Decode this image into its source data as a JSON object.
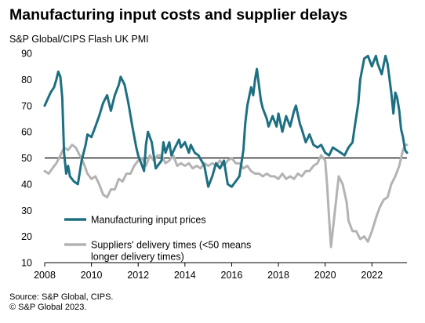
{
  "title": "Manufacturing input costs and supplier delays",
  "subtitle": "S&P Global/CIPS Flash UK PMI",
  "footer_source": "Source: S&P Global, CIPS.",
  "footer_copyright": "© S&P Global 2023.",
  "colors": {
    "input_prices": "#1d6f82",
    "delivery_times": "#b3b3b3",
    "reference": "#000000"
  },
  "chart_data": {
    "type": "line",
    "xlim": [
      2008,
      2023.5
    ],
    "ylim": [
      10,
      90
    ],
    "x_ticks": [
      2008,
      2010,
      2012,
      2014,
      2016,
      2018,
      2020,
      2022
    ],
    "y_ticks": [
      10,
      20,
      30,
      40,
      50,
      60,
      70,
      80,
      90
    ],
    "reference_line": 50,
    "legend_position": "center-bottom",
    "series": [
      {
        "name": "Manufacturing input prices",
        "color": "#1d6f82",
        "points": [
          [
            2008.0,
            70
          ],
          [
            2008.25,
            75
          ],
          [
            2008.4,
            77
          ],
          [
            2008.5,
            80
          ],
          [
            2008.58,
            83
          ],
          [
            2008.67,
            81
          ],
          [
            2008.75,
            73
          ],
          [
            2008.83,
            52
          ],
          [
            2008.92,
            44
          ],
          [
            2009.0,
            47
          ],
          [
            2009.08,
            43
          ],
          [
            2009.25,
            41
          ],
          [
            2009.42,
            40
          ],
          [
            2009.58,
            49
          ],
          [
            2009.75,
            55
          ],
          [
            2009.83,
            59
          ],
          [
            2010.0,
            58
          ],
          [
            2010.17,
            62
          ],
          [
            2010.33,
            66
          ],
          [
            2010.5,
            71
          ],
          [
            2010.67,
            74
          ],
          [
            2010.83,
            68
          ],
          [
            2011.0,
            74
          ],
          [
            2011.17,
            78
          ],
          [
            2011.25,
            81
          ],
          [
            2011.42,
            78
          ],
          [
            2011.58,
            71
          ],
          [
            2011.75,
            62
          ],
          [
            2011.92,
            54
          ],
          [
            2012.0,
            51
          ],
          [
            2012.17,
            47
          ],
          [
            2012.25,
            45
          ],
          [
            2012.33,
            55
          ],
          [
            2012.42,
            60
          ],
          [
            2012.58,
            56
          ],
          [
            2012.75,
            46
          ],
          [
            2013.0,
            49
          ],
          [
            2013.08,
            56
          ],
          [
            2013.17,
            52
          ],
          [
            2013.33,
            56
          ],
          [
            2013.42,
            51
          ],
          [
            2013.58,
            54
          ],
          [
            2013.75,
            57
          ],
          [
            2013.83,
            54
          ],
          [
            2014.0,
            56
          ],
          [
            2014.17,
            52
          ],
          [
            2014.25,
            55
          ],
          [
            2014.42,
            52
          ],
          [
            2014.58,
            51
          ],
          [
            2014.83,
            47
          ],
          [
            2015.0,
            39
          ],
          [
            2015.17,
            43
          ],
          [
            2015.33,
            48
          ],
          [
            2015.5,
            46
          ],
          [
            2015.67,
            49
          ],
          [
            2015.83,
            40
          ],
          [
            2016.0,
            39
          ],
          [
            2016.17,
            41
          ],
          [
            2016.33,
            43
          ],
          [
            2016.5,
            53
          ],
          [
            2016.58,
            63
          ],
          [
            2016.67,
            70
          ],
          [
            2016.83,
            77
          ],
          [
            2016.92,
            74
          ],
          [
            2017.0,
            80
          ],
          [
            2017.08,
            84
          ],
          [
            2017.25,
            72
          ],
          [
            2017.33,
            69
          ],
          [
            2017.5,
            65
          ],
          [
            2017.58,
            62
          ],
          [
            2017.75,
            66
          ],
          [
            2017.92,
            62
          ],
          [
            2018.0,
            67
          ],
          [
            2018.17,
            60
          ],
          [
            2018.33,
            66
          ],
          [
            2018.5,
            62
          ],
          [
            2018.67,
            68
          ],
          [
            2018.75,
            70
          ],
          [
            2018.92,
            63
          ],
          [
            2019.0,
            61
          ],
          [
            2019.17,
            56
          ],
          [
            2019.33,
            59
          ],
          [
            2019.5,
            55
          ],
          [
            2019.67,
            54
          ],
          [
            2019.83,
            55
          ],
          [
            2020.0,
            52
          ],
          [
            2020.17,
            51
          ],
          [
            2020.33,
            54
          ],
          [
            2020.5,
            53
          ],
          [
            2020.67,
            52
          ],
          [
            2020.83,
            51
          ],
          [
            2021.0,
            54
          ],
          [
            2021.17,
            56
          ],
          [
            2021.25,
            61
          ],
          [
            2021.42,
            71
          ],
          [
            2021.5,
            80
          ],
          [
            2021.67,
            88
          ],
          [
            2021.83,
            89
          ],
          [
            2022.0,
            85
          ],
          [
            2022.08,
            87
          ],
          [
            2022.17,
            89
          ],
          [
            2022.25,
            86
          ],
          [
            2022.42,
            82
          ],
          [
            2022.58,
            89
          ],
          [
            2022.67,
            86
          ],
          [
            2022.83,
            75
          ],
          [
            2022.92,
            67
          ],
          [
            2023.0,
            75
          ],
          [
            2023.08,
            73
          ],
          [
            2023.17,
            68
          ],
          [
            2023.25,
            61
          ],
          [
            2023.33,
            58
          ],
          [
            2023.42,
            53
          ],
          [
            2023.5,
            52
          ]
        ]
      },
      {
        "name": "Suppliers' delivery times (<50 means longer delivery times)",
        "color": "#b3b3b3",
        "points": [
          [
            2008.0,
            45
          ],
          [
            2008.17,
            44
          ],
          [
            2008.33,
            46
          ],
          [
            2008.5,
            48
          ],
          [
            2008.67,
            51
          ],
          [
            2008.83,
            54
          ],
          [
            2009.0,
            53
          ],
          [
            2009.17,
            55
          ],
          [
            2009.33,
            54
          ],
          [
            2009.5,
            51
          ],
          [
            2009.67,
            48
          ],
          [
            2009.83,
            44
          ],
          [
            2010.0,
            42
          ],
          [
            2010.17,
            43
          ],
          [
            2010.33,
            40
          ],
          [
            2010.5,
            36
          ],
          [
            2010.67,
            35
          ],
          [
            2010.83,
            38
          ],
          [
            2011.0,
            38
          ],
          [
            2011.17,
            42
          ],
          [
            2011.33,
            41
          ],
          [
            2011.5,
            44
          ],
          [
            2011.67,
            44
          ],
          [
            2011.83,
            47
          ],
          [
            2012.0,
            49
          ],
          [
            2012.17,
            50
          ],
          [
            2012.33,
            47
          ],
          [
            2012.5,
            51
          ],
          [
            2012.67,
            49
          ],
          [
            2012.83,
            51
          ],
          [
            2013.0,
            51
          ],
          [
            2013.17,
            48
          ],
          [
            2013.33,
            49
          ],
          [
            2013.5,
            51
          ],
          [
            2013.67,
            47
          ],
          [
            2013.83,
            48
          ],
          [
            2014.0,
            47
          ],
          [
            2014.17,
            48
          ],
          [
            2014.33,
            46
          ],
          [
            2014.5,
            47
          ],
          [
            2014.67,
            46
          ],
          [
            2014.83,
            48
          ],
          [
            2015.0,
            47
          ],
          [
            2015.17,
            48
          ],
          [
            2015.33,
            47
          ],
          [
            2015.5,
            49
          ],
          [
            2015.67,
            47
          ],
          [
            2015.83,
            49
          ],
          [
            2016.0,
            50
          ],
          [
            2016.17,
            48
          ],
          [
            2016.33,
            48
          ],
          [
            2016.5,
            46
          ],
          [
            2016.67,
            47
          ],
          [
            2016.83,
            45
          ],
          [
            2017.0,
            44
          ],
          [
            2017.17,
            44
          ],
          [
            2017.33,
            43
          ],
          [
            2017.5,
            44
          ],
          [
            2017.67,
            43
          ],
          [
            2017.83,
            43
          ],
          [
            2018.0,
            42
          ],
          [
            2018.17,
            44
          ],
          [
            2018.33,
            42
          ],
          [
            2018.5,
            43
          ],
          [
            2018.67,
            42
          ],
          [
            2018.83,
            44
          ],
          [
            2019.0,
            43
          ],
          [
            2019.17,
            45
          ],
          [
            2019.33,
            45
          ],
          [
            2019.5,
            47
          ],
          [
            2019.67,
            48
          ],
          [
            2019.83,
            51
          ],
          [
            2020.0,
            49
          ],
          [
            2020.08,
            40
          ],
          [
            2020.17,
            27
          ],
          [
            2020.25,
            16
          ],
          [
            2020.42,
            30
          ],
          [
            2020.58,
            43
          ],
          [
            2020.75,
            40
          ],
          [
            2020.92,
            33
          ],
          [
            2021.0,
            26
          ],
          [
            2021.17,
            22
          ],
          [
            2021.33,
            22
          ],
          [
            2021.5,
            19
          ],
          [
            2021.67,
            20
          ],
          [
            2021.83,
            18
          ],
          [
            2022.0,
            22
          ],
          [
            2022.17,
            27
          ],
          [
            2022.33,
            31
          ],
          [
            2022.5,
            34
          ],
          [
            2022.67,
            35
          ],
          [
            2022.83,
            40
          ],
          [
            2023.0,
            43
          ],
          [
            2023.17,
            47
          ],
          [
            2023.33,
            53
          ],
          [
            2023.42,
            55
          ],
          [
            2023.5,
            55
          ]
        ]
      }
    ]
  }
}
